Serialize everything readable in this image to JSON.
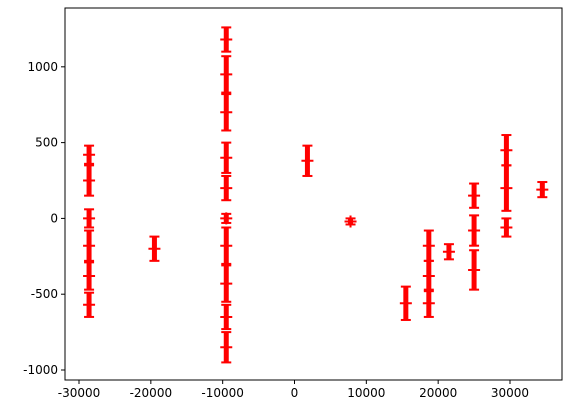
{
  "chart_data": {
    "type": "errorbar",
    "color": "#ff0000",
    "x": [
      -28600,
      -28600,
      -28600,
      -28600,
      -28600,
      -28600,
      -19500,
      -9500,
      -9500,
      -9500,
      -9500,
      -9500,
      -9500,
      -9500,
      -9500,
      -9500,
      -9500,
      1800,
      7800,
      15500,
      18700,
      18700,
      18700,
      21500,
      25000,
      25000,
      25000,
      29500,
      29500,
      29500,
      34500
    ],
    "values": [
      -570,
      -380,
      -180,
      0,
      250,
      420,
      -200,
      -850,
      -650,
      -430,
      -180,
      0,
      200,
      400,
      700,
      950,
      1180,
      380,
      -20,
      -560,
      -560,
      -380,
      -180,
      -220,
      -340,
      -80,
      150,
      -60,
      200,
      450,
      190
    ],
    "errors": [
      80,
      90,
      100,
      60,
      100,
      60,
      80,
      100,
      80,
      120,
      120,
      30,
      80,
      100,
      120,
      120,
      80,
      100,
      20,
      110,
      90,
      100,
      100,
      50,
      130,
      100,
      80,
      60,
      150,
      100,
      50
    ],
    "xlim": [
      -31950,
      37240
    ],
    "ylim": [
      -1066,
      1388
    ],
    "xticks": [
      -30000,
      -20000,
      -10000,
      0,
      10000,
      20000,
      30000
    ],
    "yticks": [
      -1000,
      -500,
      0,
      500,
      1000
    ]
  }
}
